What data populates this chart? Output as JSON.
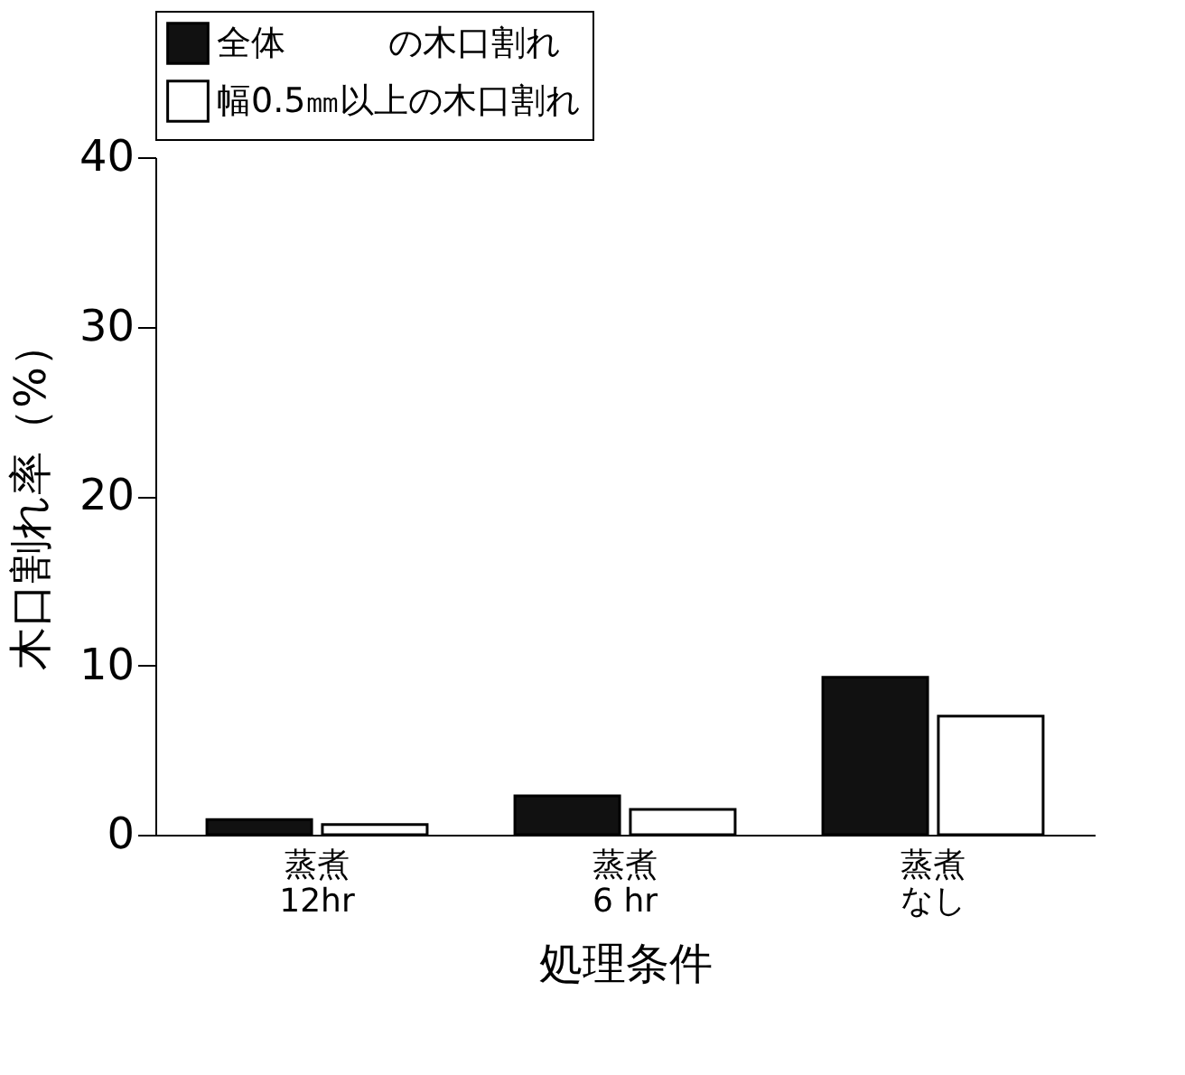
{
  "chart_data": {
    "type": "bar",
    "xlabel": "処理条件",
    "ylabel": "木口割れ率（%）",
    "categories": [
      "蒸煮\n12hr",
      "蒸煮\n6 hr",
      "蒸煮なし"
    ],
    "series": [
      {
        "name": "全体　　　の木口割れ",
        "color": "#111111",
        "values": [
          0.9,
          2.3,
          9.3
        ]
      },
      {
        "name": "幅0.5㎜以上の木口割れ",
        "color": "#ffffff",
        "values": [
          0.6,
          1.5,
          7.0
        ]
      }
    ],
    "ylim": [
      0,
      40
    ],
    "yticks": [
      0,
      10,
      20,
      30,
      40
    ],
    "grid": false,
    "legend": "top left"
  }
}
